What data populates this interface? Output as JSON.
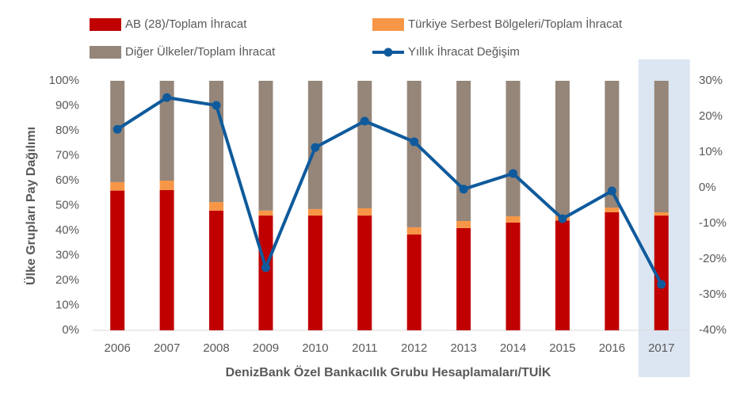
{
  "chart_data": {
    "type": "bar",
    "x_label": "DenizBank Özel Bankacılık Grubu Hesaplamaları/TUİK",
    "y_label": "Ülke Grupları Pay Dağılımı",
    "categories": [
      "2006",
      "2007",
      "2008",
      "2009",
      "2010",
      "2011",
      "2012",
      "2013",
      "2014",
      "2015",
      "2016",
      "2017"
    ],
    "stacked": true,
    "series": [
      {
        "name": "AB (28)/Toplam İhracat",
        "color": "#c00000",
        "values": [
          56,
          56.2,
          48,
          46,
          46,
          46,
          38.4,
          41,
          43.2,
          44,
          47.3,
          46
        ]
      },
      {
        "name": "Türkiye Serbest Bölgeleri/Toplam İhracat",
        "color": "#f79646",
        "values": [
          3.4,
          3.8,
          3.4,
          2,
          2.6,
          2.9,
          2.9,
          2.8,
          2.5,
          2,
          1.9,
          1.3
        ]
      },
      {
        "name": "Diğer Ülkeler/Toplam İhracat",
        "color": "#958679",
        "values": [
          40.6,
          40,
          48.6,
          52,
          51.4,
          51.1,
          58.7,
          56.2,
          54.3,
          54,
          50.8,
          52.7
        ]
      },
      {
        "name": "Yıllık İhracat Değişim",
        "color": "#0f5a9c",
        "type": "line",
        "axis": "y2",
        "values": [
          16.4,
          25.3,
          23.1,
          -22.4,
          11.3,
          18.7,
          12.9,
          -0.4,
          4,
          -8.7,
          -0.9,
          -27.1
        ]
      }
    ],
    "ylim": [
      0,
      100
    ],
    "yticks": [
      {
        "value": 0,
        "label": "0%"
      },
      {
        "value": 10,
        "label": "10%"
      },
      {
        "value": 20,
        "label": "20%"
      },
      {
        "value": 30,
        "label": "30%"
      },
      {
        "value": 40,
        "label": "40%"
      },
      {
        "value": 50,
        "label": "50%"
      },
      {
        "value": 60,
        "label": "60%"
      },
      {
        "value": 70,
        "label": "70%"
      },
      {
        "value": 80,
        "label": "80%"
      },
      {
        "value": 90,
        "label": "90%"
      },
      {
        "value": 100,
        "label": "100%"
      }
    ],
    "y2lim": [
      -40,
      30
    ],
    "y2ticks": [
      {
        "value": -40,
        "label": "-40%"
      },
      {
        "value": -30,
        "label": "-30%"
      },
      {
        "value": -20,
        "label": "-20%"
      },
      {
        "value": -10,
        "label": "-10%"
      },
      {
        "value": 0,
        "label": "0%"
      },
      {
        "value": 10,
        "label": "10%"
      },
      {
        "value": 20,
        "label": "20%"
      },
      {
        "value": 30,
        "label": "30%"
      }
    ],
    "grid": false
  }
}
